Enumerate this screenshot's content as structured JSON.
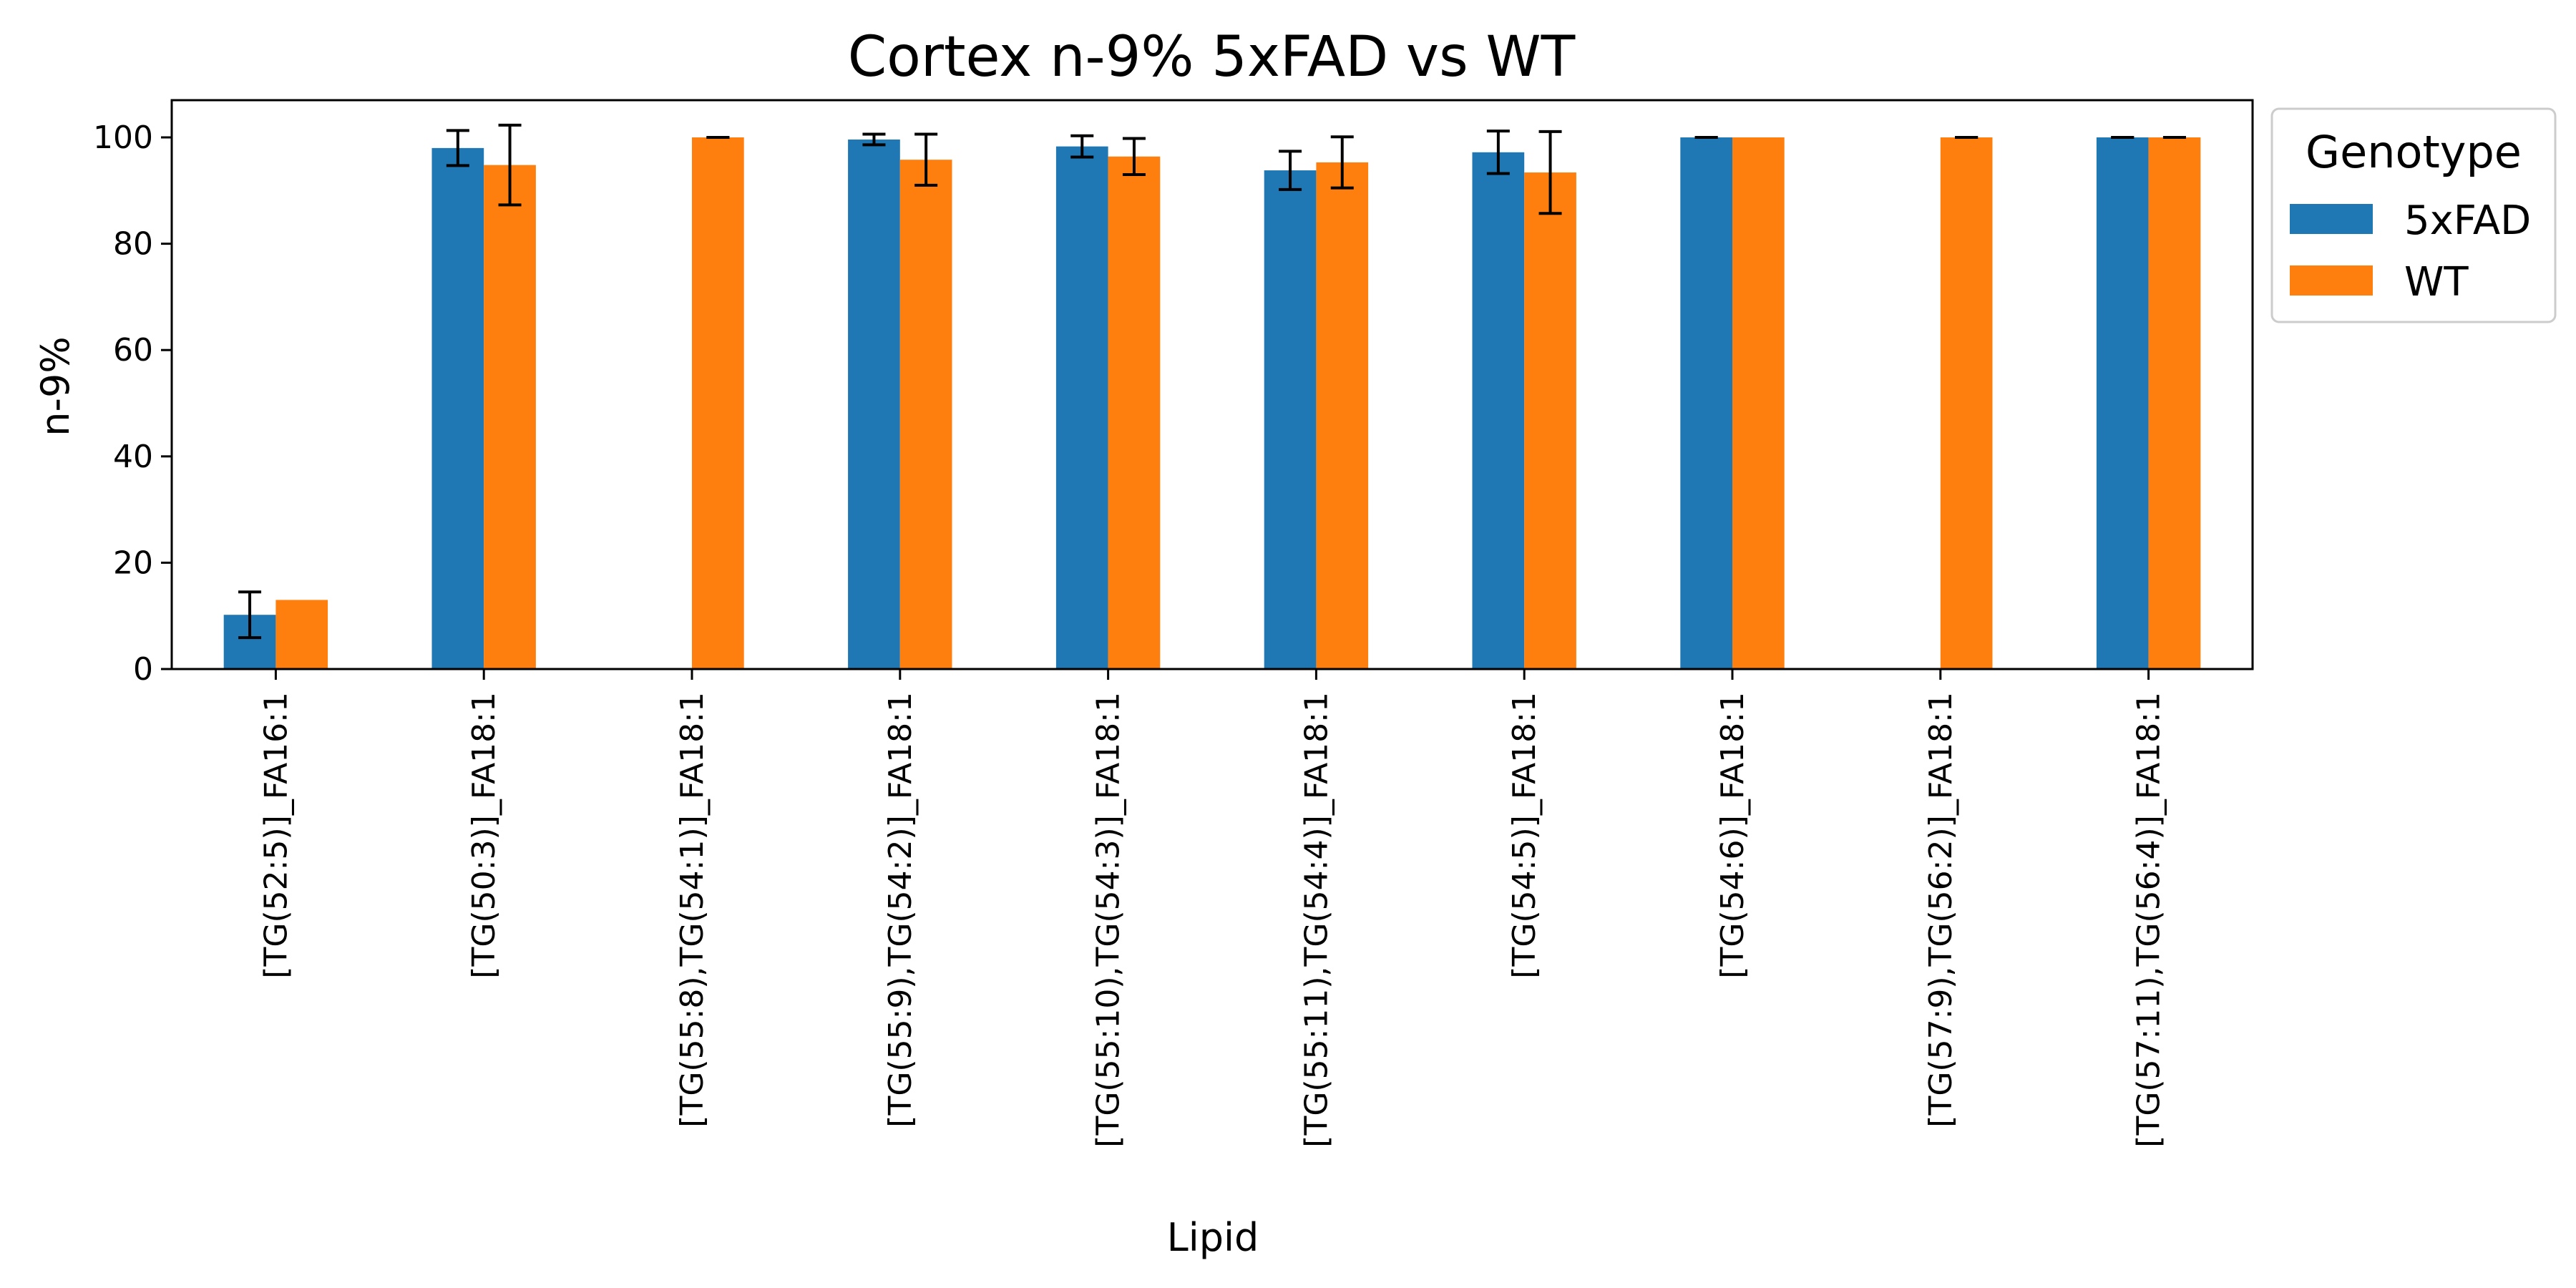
{
  "chart_data": {
    "type": "bar",
    "title": "Cortex n-9% 5xFAD vs WT",
    "xlabel": "Lipid",
    "ylabel": "n-9%",
    "ylim": [
      0,
      107
    ],
    "yticks": [
      0,
      20,
      40,
      60,
      80,
      100
    ],
    "grid": false,
    "legend": {
      "title": "Genotype",
      "placement": "outside-top-right"
    },
    "categories": [
      "[TG(52:5)]_FA16:1",
      "[TG(50:3)]_FA18:1",
      "[TG(55:8),TG(54:1)]_FA18:1",
      "[TG(55:9),TG(54:2)]_FA18:1",
      "[TG(55:10),TG(54:3)]_FA18:1",
      "[TG(55:11),TG(54:4)]_FA18:1",
      "[TG(54:5)]_FA18:1",
      "[TG(54:6)]_FA18:1",
      "[TG(57:9),TG(56:2)]_FA18:1",
      "[TG(57:11),TG(56:4)]_FA18:1"
    ],
    "series": [
      {
        "name": "5xFAD",
        "color": "#1f77b4",
        "values": [
          10.2,
          98.0,
          null,
          99.6,
          98.3,
          93.8,
          97.2,
          100.0,
          null,
          100.0
        ],
        "errors": [
          4.3,
          3.3,
          null,
          1.0,
          2.0,
          3.6,
          4.0,
          0.0,
          null,
          0.0
        ]
      },
      {
        "name": "WT",
        "color": "#ff7f0e",
        "values": [
          13.0,
          94.8,
          100.0,
          95.8,
          96.4,
          95.3,
          93.4,
          100.0,
          100.0,
          100.0
        ],
        "errors": [
          null,
          7.5,
          0.0,
          4.8,
          3.4,
          4.8,
          7.7,
          null,
          0.0,
          0.0
        ]
      }
    ]
  }
}
